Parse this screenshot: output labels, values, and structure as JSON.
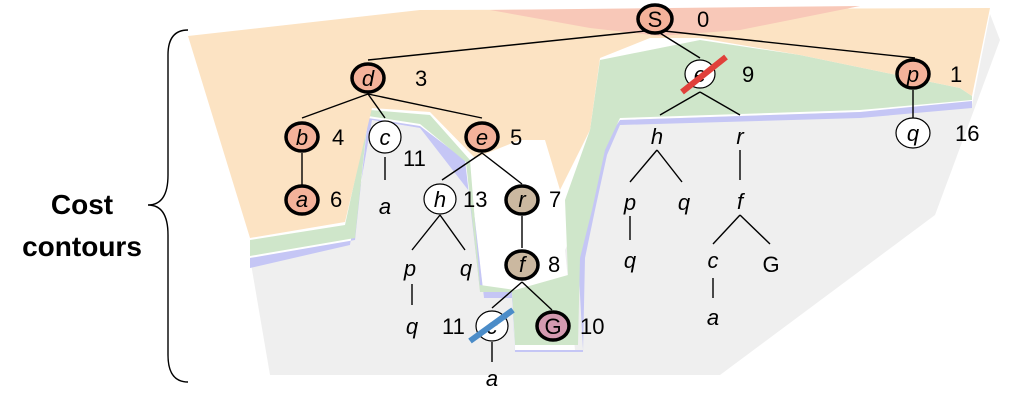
{
  "side_label": {
    "line1": "Cost",
    "line2": "contours"
  },
  "colors": {
    "band_top": "#F8C8B8",
    "band_orange": "#FCE3C3",
    "band_green": "#CFE6CA",
    "band_blue": "#C5C6F5",
    "band_gray": "#EFEFEF",
    "node_expanded_orange": "#F4B29A",
    "node_expanded_tan": "#CBB8A0",
    "node_goal": "#D49AB0",
    "node_plain": "#FFFFFF",
    "strike_red": "#E0403A",
    "strike_blue": "#4B8CC8"
  },
  "nodes": {
    "S": {
      "label": "S",
      "cost": "0"
    },
    "d": {
      "label": "d",
      "cost": "3"
    },
    "e1": {
      "label": "e",
      "cost": "9"
    },
    "p1": {
      "label": "p",
      "cost": "1"
    },
    "b": {
      "label": "b",
      "cost": "4"
    },
    "c1": {
      "label": "c",
      "cost": "11"
    },
    "e2": {
      "label": "e",
      "cost": "5"
    },
    "q1": {
      "label": "q",
      "cost": "16"
    },
    "a1": {
      "label": "a",
      "cost": "6"
    },
    "a2": {
      "label": "a",
      "cost": ""
    },
    "h1": {
      "label": "h",
      "cost": "13"
    },
    "r1": {
      "label": "r",
      "cost": "7"
    },
    "h2": {
      "label": "h",
      "cost": ""
    },
    "r2": {
      "label": "r",
      "cost": ""
    },
    "p2": {
      "label": "p",
      "cost": ""
    },
    "q2": {
      "label": "q",
      "cost": ""
    },
    "f1": {
      "label": "f",
      "cost": "8"
    },
    "p3": {
      "label": "p",
      "cost": ""
    },
    "q3": {
      "label": "q",
      "cost": ""
    },
    "f2": {
      "label": "f",
      "cost": ""
    },
    "q4": {
      "label": "q",
      "cost": ""
    },
    "c2": {
      "label": "c",
      "cost": "11"
    },
    "G1": {
      "label": "G",
      "cost": "10"
    },
    "q5": {
      "label": "q",
      "cost": ""
    },
    "c3": {
      "label": "c",
      "cost": ""
    },
    "G2": {
      "label": "G",
      "cost": ""
    },
    "a3": {
      "label": "a",
      "cost": ""
    },
    "a4": {
      "label": "a",
      "cost": ""
    }
  }
}
